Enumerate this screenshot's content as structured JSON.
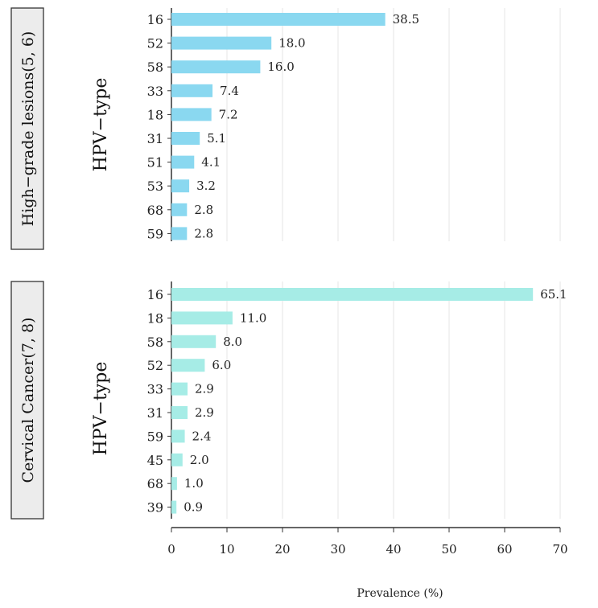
{
  "chart_data": {
    "type": "bar",
    "orientation": "horizontal",
    "xlabel": "Prevalence (%)",
    "xlim": [
      0,
      70
    ],
    "xticks": [
      0,
      10,
      20,
      30,
      40,
      50,
      60,
      70
    ],
    "grid": true,
    "panels": [
      {
        "strip_label": "High−grade lesions(5, 6)",
        "ylabel": "HPV−type",
        "color": "#8ad8f0",
        "categories": [
          "16",
          "52",
          "58",
          "33",
          "18",
          "31",
          "51",
          "53",
          "68",
          "59"
        ],
        "values": [
          38.5,
          18.0,
          16.0,
          7.4,
          7.2,
          5.1,
          4.1,
          3.2,
          2.8,
          2.8
        ],
        "value_labels": [
          "38.5",
          "18.0",
          "16.0",
          "7.4",
          "7.2",
          "5.1",
          "4.1",
          "3.2",
          "2.8",
          "2.8"
        ]
      },
      {
        "strip_label": "Cervical Cancer(7, 8)",
        "ylabel": "HPV−type",
        "color": "#a6ece6",
        "categories": [
          "16",
          "18",
          "58",
          "52",
          "33",
          "31",
          "59",
          "45",
          "68",
          "39"
        ],
        "values": [
          65.1,
          11.0,
          8.0,
          6.0,
          2.9,
          2.9,
          2.4,
          2.0,
          1.0,
          0.9
        ],
        "value_labels": [
          "65.1",
          "11.0",
          "8.0",
          "6.0",
          "2.9",
          "2.9",
          "2.4",
          "2.0",
          "1.0",
          "0.9"
        ]
      }
    ]
  }
}
